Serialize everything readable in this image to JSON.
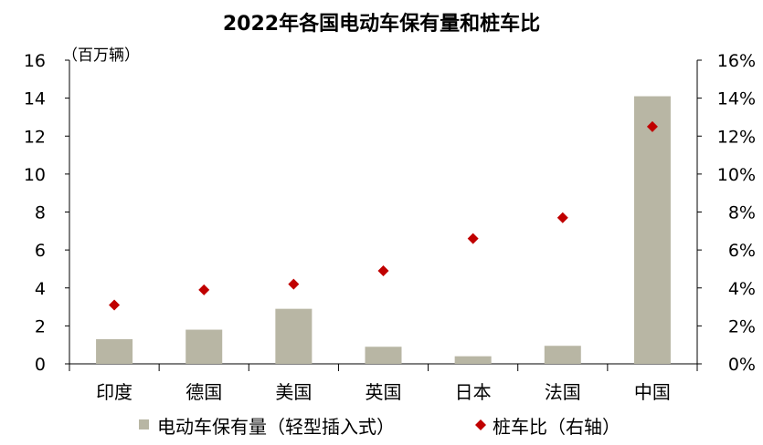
{
  "chart_data": {
    "type": "bar",
    "title": "2022年各国电动车保有量和桩车比",
    "unit_label": "（百万辆）",
    "categories": [
      "印度",
      "德国",
      "美国",
      "英国",
      "日本",
      "法国",
      "中国"
    ],
    "series": [
      {
        "name": "电动车保有量（轻型插入式）",
        "type": "bar",
        "axis": "left",
        "color": "#B8B6A4",
        "values": [
          1.3,
          1.8,
          2.9,
          0.9,
          0.4,
          0.95,
          14.1
        ]
      },
      {
        "name": "桩车比（右轴）",
        "type": "scatter",
        "axis": "right",
        "marker": "diamond",
        "color": "#C00000",
        "values": [
          0.031,
          0.039,
          0.042,
          0.049,
          0.066,
          0.077,
          0.125
        ]
      }
    ],
    "left_axis": {
      "ylim": [
        0,
        16
      ],
      "ticks": [
        "0",
        "2",
        "4",
        "6",
        "8",
        "10",
        "12",
        "14",
        "16"
      ]
    },
    "right_axis": {
      "ylim": [
        0,
        0.16
      ],
      "ticks": [
        "0%",
        "2%",
        "4%",
        "6%",
        "8%",
        "10%",
        "12%",
        "14%",
        "16%"
      ]
    },
    "grid": false,
    "legend": "bottom"
  }
}
